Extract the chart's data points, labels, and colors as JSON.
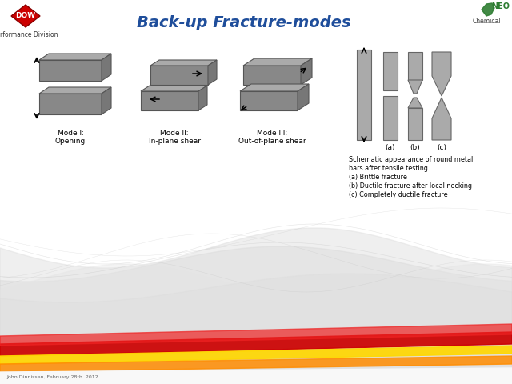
{
  "title": "Back-up Fracture-modes",
  "title_color": "#1F4E9B",
  "title_fontsize": 14,
  "background_color": "#FFFFFF",
  "dow_text": "Performance Division",
  "description_lines": [
    "Schematic appearance of round metal",
    "bars after tensile testing.",
    "(a) Brittle fracture",
    "(b) Ductile fracture after local necking",
    "(c) Completely ductile fracture"
  ],
  "mode_labels": [
    "Mode I:\nOpening",
    "Mode II:\nIn-plane shear",
    "Mode III:\nOut-of-plane shear"
  ],
  "specimen_labels": [
    "(a)",
    "(b)",
    "(c)"
  ],
  "bar_color": "#AAAAAA",
  "bar_edge": "#666666",
  "block_face": "#888888",
  "block_top": "#AAAAAA",
  "block_right": "#777777",
  "block_edge": "#555555",
  "bottom_text": "John Dinnissen, February 28th  2012"
}
